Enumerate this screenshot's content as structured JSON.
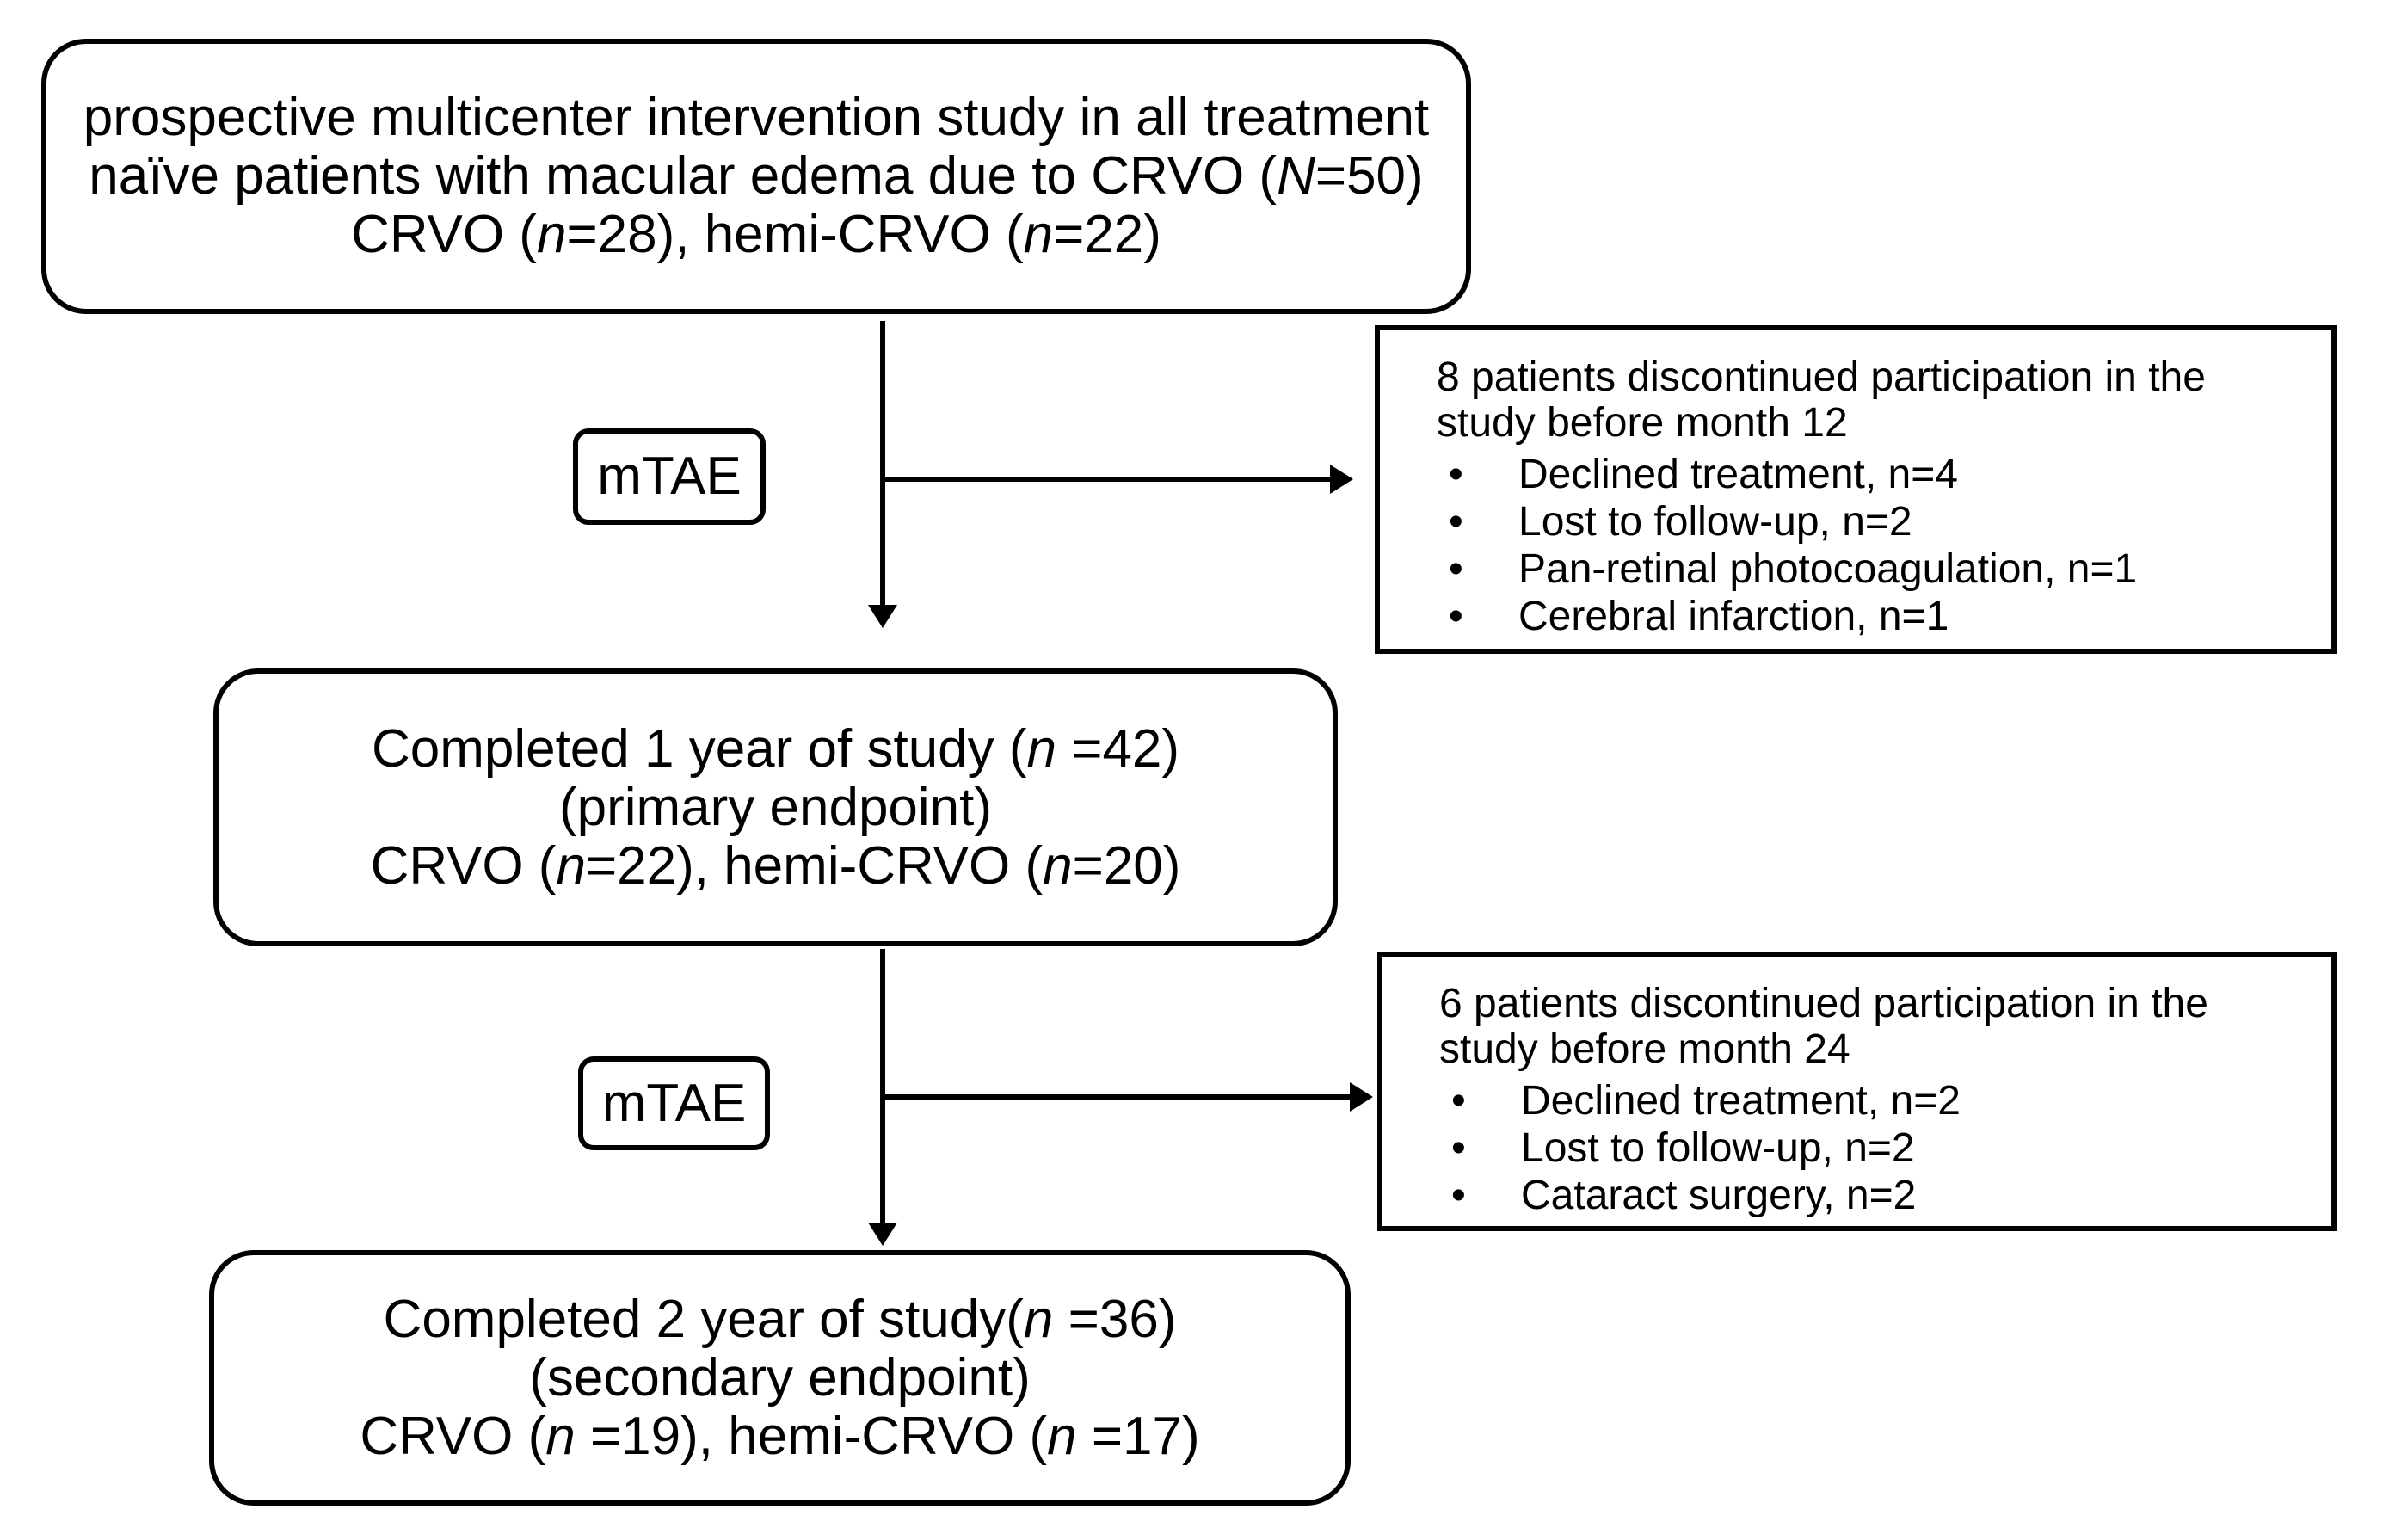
{
  "colors": {
    "ink": "#000000",
    "background": "#ffffff"
  },
  "bullet_char": "•",
  "enrollment_box": {
    "line1": "prospective multicenter intervention study in all treatment",
    "line2": [
      {
        "t": "naïve patients with macular edema due to CRVO ("
      },
      {
        "t": "N",
        "i": true
      },
      {
        "t": "=50)"
      }
    ],
    "line3": [
      {
        "t": "CRVO ("
      },
      {
        "t": "n",
        "i": true
      },
      {
        "t": "=28), hemi-CRVO ("
      },
      {
        "t": "n",
        "i": true
      },
      {
        "t": "=22)"
      }
    ]
  },
  "mtae_badge_1": {
    "label": "mTAE"
  },
  "dropout_box_1": {
    "title_line1": "8 patients discontinued participation in the",
    "title_line2": "study before month 12",
    "bullets": [
      "Declined treatment, n=4",
      "Lost to follow-up, n=2",
      "Pan-retinal photocoagulation, n=1",
      "Cerebral infarction, n=1"
    ]
  },
  "year1_box": {
    "line1": [
      {
        "t": "Completed 1 year of study ("
      },
      {
        "t": "n",
        "i": true
      },
      {
        "t": " =42)"
      }
    ],
    "line2": "(primary endpoint)",
    "line3": [
      {
        "t": "CRVO ("
      },
      {
        "t": "n",
        "i": true
      },
      {
        "t": "=22), hemi-CRVO ("
      },
      {
        "t": "n",
        "i": true
      },
      {
        "t": "=20)"
      }
    ]
  },
  "mtae_badge_2": {
    "label": "mTAE"
  },
  "dropout_box_2": {
    "title_line1": "6 patients discontinued participation in the",
    "title_line2": "study before month 24",
    "bullets": [
      "Declined treatment, n=2",
      "Lost to follow-up, n=2",
      "Cataract surgery, n=2"
    ]
  },
  "year2_box": {
    "line1": [
      {
        "t": "Completed 2 year of study("
      },
      {
        "t": "n",
        "i": true
      },
      {
        "t": " =36)"
      }
    ],
    "line2": "(secondary endpoint)",
    "line3": [
      {
        "t": "CRVO ("
      },
      {
        "t": "n",
        "i": true
      },
      {
        "t": " =19), hemi-CRVO ("
      },
      {
        "t": "n",
        "i": true
      },
      {
        "t": " =17)"
      }
    ]
  }
}
